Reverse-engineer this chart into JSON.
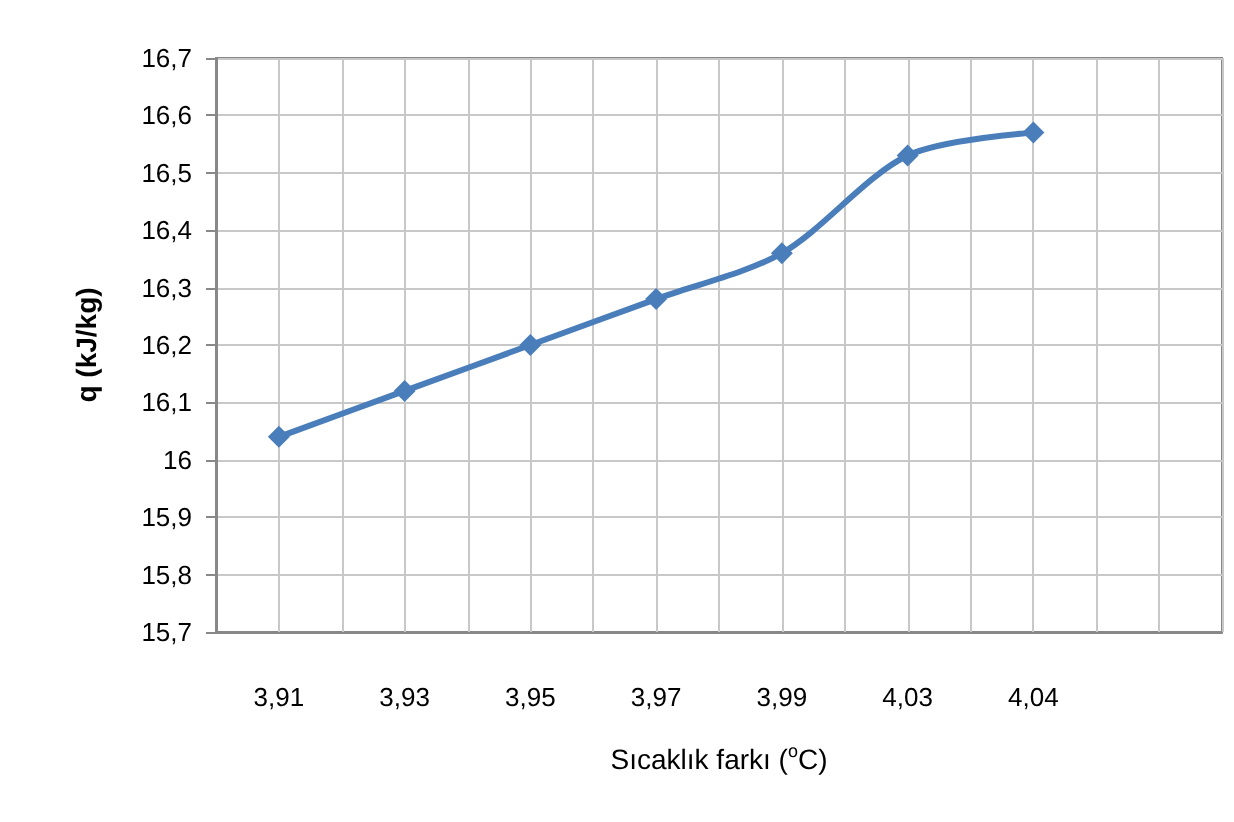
{
  "chart_data": {
    "type": "line",
    "xlabel": "Sıcaklık farkı ($^{o}$C)",
    "ylabel": "q (kJ/kg)",
    "categories": [
      "3,91",
      "3,93",
      "3,95",
      "3,97",
      "3,99",
      "4,03",
      "4,04",
      null
    ],
    "series": [
      {
        "color": "#4a7ebb",
        "values": [
          16.04,
          16.12,
          16.2,
          16.28,
          16.36,
          16.53,
          16.57,
          null
        ]
      }
    ],
    "ylim": [
      15.7,
      16.7
    ],
    "yticks": [
      {
        "value": 15.7,
        "label": "15,7"
      },
      {
        "value": 15.8,
        "label": "15,8"
      },
      {
        "value": 15.9,
        "label": "15,9"
      },
      16,
      {
        "value": 16.1,
        "label": "16,1"
      },
      {
        "value": 16.2,
        "label": "16,2"
      },
      {
        "value": 16.3,
        "label": "16,3"
      },
      {
        "value": 16.4,
        "label": "16,4"
      },
      {
        "value": 16.5,
        "label": "16,5"
      },
      {
        "value": 16.6,
        "label": "16,6"
      },
      {
        "value": 16.7,
        "label": "16,7"
      }
    ],
    "grid": true,
    "marker": "diamond",
    "line_style": "solid"
  }
}
